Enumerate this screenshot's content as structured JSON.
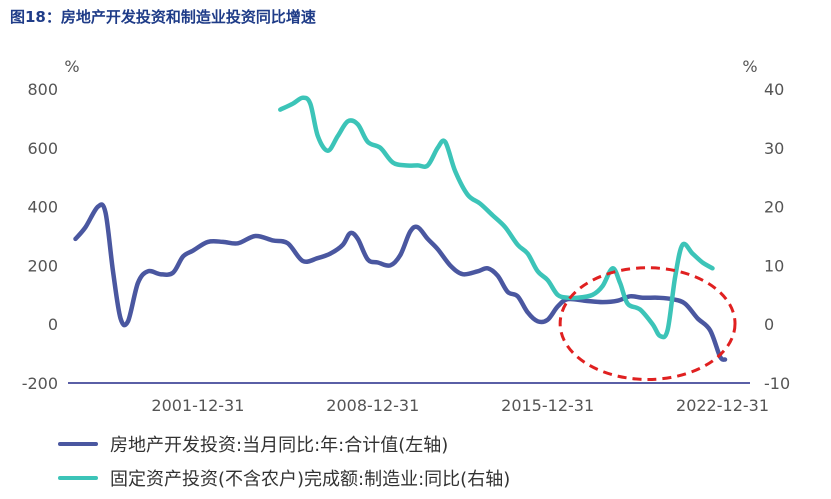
{
  "figure_title": "图18：房地产开发投资和制造业投资同比增速",
  "colors": {
    "series_left": "#4a57a0",
    "series_right": "#3cc4b8",
    "circle": "#e02020",
    "axis_text": "#555555"
  },
  "chart_data": {
    "type": "line",
    "title": "",
    "x_ticks": [
      "2001-12-31",
      "2008-12-31",
      "2015-12-31",
      "2022-12-31"
    ],
    "x_range": [
      1996.8,
      2024.1
    ],
    "left_axis": {
      "unit": "%",
      "ticks": [
        800,
        600,
        400,
        200,
        0,
        -200
      ],
      "range": [
        -200,
        800
      ]
    },
    "right_axis": {
      "unit": "%",
      "ticks": [
        40,
        30,
        20,
        10,
        0,
        -10
      ],
      "range": [
        -10,
        40
      ]
    },
    "series": [
      {
        "name": "房地产开发投资:当月同比:年:合计值(左轴)",
        "axis": "left",
        "points": [
          [
            1997.1,
            290
          ],
          [
            1997.5,
            330
          ],
          [
            1998.0,
            400
          ],
          [
            1998.3,
            380
          ],
          [
            1998.6,
            180
          ],
          [
            1998.9,
            20
          ],
          [
            1999.2,
            10
          ],
          [
            1999.6,
            140
          ],
          [
            2000.0,
            180
          ],
          [
            2000.5,
            170
          ],
          [
            2001.0,
            175
          ],
          [
            2001.4,
            230
          ],
          [
            2001.8,
            250
          ],
          [
            2002.4,
            280
          ],
          [
            2003.0,
            280
          ],
          [
            2003.6,
            275
          ],
          [
            2004.3,
            300
          ],
          [
            2005.0,
            285
          ],
          [
            2005.6,
            275
          ],
          [
            2006.2,
            215
          ],
          [
            2006.8,
            225
          ],
          [
            2007.3,
            240
          ],
          [
            2007.8,
            270
          ],
          [
            2008.1,
            310
          ],
          [
            2008.4,
            290
          ],
          [
            2008.8,
            220
          ],
          [
            2009.2,
            210
          ],
          [
            2009.7,
            200
          ],
          [
            2010.1,
            235
          ],
          [
            2010.5,
            315
          ],
          [
            2010.8,
            330
          ],
          [
            2011.2,
            290
          ],
          [
            2011.6,
            255
          ],
          [
            2012.1,
            200
          ],
          [
            2012.6,
            170
          ],
          [
            2013.2,
            180
          ],
          [
            2013.6,
            190
          ],
          [
            2014.0,
            165
          ],
          [
            2014.4,
            110
          ],
          [
            2014.8,
            95
          ],
          [
            2015.2,
            40
          ],
          [
            2015.6,
            10
          ],
          [
            2016.0,
            15
          ],
          [
            2016.4,
            60
          ],
          [
            2016.8,
            85
          ],
          [
            2017.5,
            80
          ],
          [
            2018.2,
            75
          ],
          [
            2018.8,
            80
          ],
          [
            2019.3,
            95
          ],
          [
            2019.8,
            90
          ],
          [
            2020.4,
            90
          ],
          [
            2021.0,
            85
          ],
          [
            2021.5,
            70
          ],
          [
            2022.0,
            20
          ],
          [
            2022.5,
            -20
          ],
          [
            2022.9,
            -110
          ],
          [
            2023.1,
            -120
          ]
        ]
      },
      {
        "name": "固定资产投资(不含农户)完成额:制造业:同比(右轴)",
        "axis": "right",
        "points": [
          [
            2005.3,
            36.5
          ],
          [
            2005.8,
            37.5
          ],
          [
            2006.2,
            38.5
          ],
          [
            2006.5,
            37.5
          ],
          [
            2006.8,
            32
          ],
          [
            2007.2,
            29.5
          ],
          [
            2007.6,
            32
          ],
          [
            2008.0,
            34.5
          ],
          [
            2008.4,
            34
          ],
          [
            2008.8,
            31
          ],
          [
            2009.3,
            30
          ],
          [
            2009.8,
            27.5
          ],
          [
            2010.3,
            27
          ],
          [
            2010.8,
            27
          ],
          [
            2011.2,
            27
          ],
          [
            2011.6,
            30
          ],
          [
            2011.9,
            31
          ],
          [
            2012.3,
            26
          ],
          [
            2012.8,
            22
          ],
          [
            2013.3,
            20.5
          ],
          [
            2013.8,
            18.5
          ],
          [
            2014.3,
            16.5
          ],
          [
            2014.8,
            13.5
          ],
          [
            2015.2,
            12
          ],
          [
            2015.6,
            9
          ],
          [
            2016.0,
            7.5
          ],
          [
            2016.4,
            5
          ],
          [
            2016.8,
            4.5
          ],
          [
            2017.2,
            4.5
          ],
          [
            2017.8,
            5
          ],
          [
            2018.2,
            6.5
          ],
          [
            2018.6,
            9.5
          ],
          [
            2018.9,
            7
          ],
          [
            2019.2,
            3.5
          ],
          [
            2019.7,
            2.5
          ],
          [
            2020.2,
            0
          ],
          [
            2020.5,
            -2
          ],
          [
            2020.8,
            -1
          ],
          [
            2021.1,
            8
          ],
          [
            2021.4,
            13.5
          ],
          [
            2021.8,
            12
          ],
          [
            2022.2,
            10.5
          ],
          [
            2022.6,
            9.5
          ]
        ]
      }
    ],
    "annotation": {
      "type": "circle",
      "center": [
        2020.0,
        0.1
      ],
      "style": "dashed-red",
      "radii": [
        3.5,
        190
      ]
    }
  }
}
